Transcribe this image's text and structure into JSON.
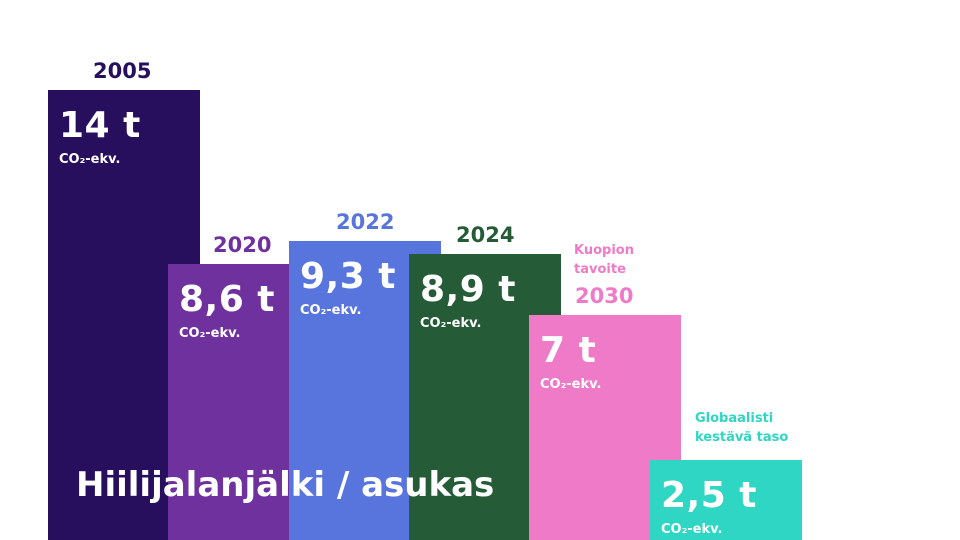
{
  "title": "Hiilijalanjälki / asukas",
  "unit_label": "CO2-ekv.",
  "chart_data": {
    "type": "bar",
    "title": "Hiilijalanjälki / asukas",
    "categories": [
      "2005",
      "2020",
      "2022",
      "2024",
      "2030",
      "Globaalisti kestävä taso"
    ],
    "values": [
      14,
      8.6,
      9.3,
      8.9,
      7,
      2.5
    ],
    "value_labels": [
      "14 t",
      "8,6 t",
      "9,3 t",
      "8,9 t",
      "7 t",
      "2,5 t"
    ],
    "notes": [
      "",
      "",
      "",
      "",
      "Kuopion tavoite",
      "Globaalisti kestävä taso"
    ],
    "colors": [
      "#270f5e",
      "#6e319d",
      "#5875dd",
      "#255c37",
      "#ef7ac7",
      "#2ed6c3"
    ],
    "label_colors": [
      "#270f5e",
      "#6e319d",
      "#5875dd",
      "#255c37",
      "#ef7ac7",
      "#2ed6c3"
    ],
    "ylim": [
      0,
      14
    ],
    "grid": false,
    "legend": "none"
  }
}
